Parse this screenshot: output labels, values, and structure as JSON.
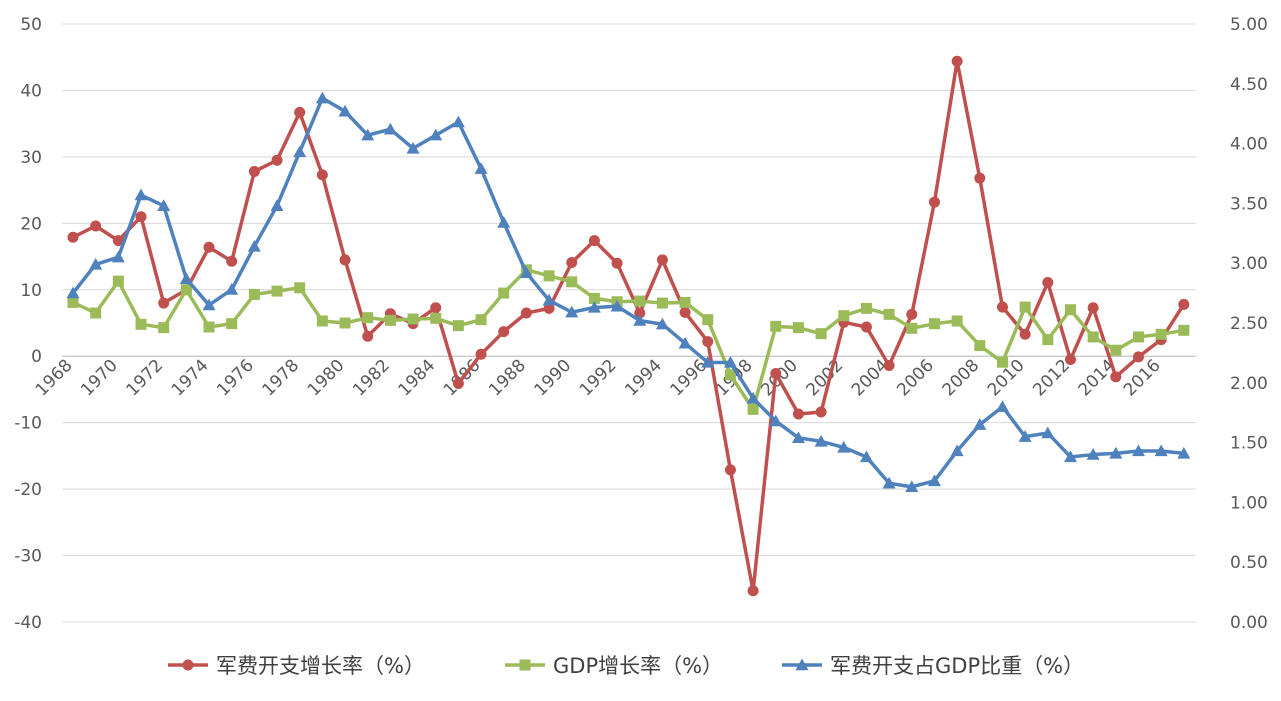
{
  "chart_data": {
    "type": "line",
    "title": "",
    "xlabel": "",
    "ylabel": "",
    "y2label": "",
    "grid": true,
    "legend_position": "bottom",
    "x": [
      1968,
      1969,
      1970,
      1971,
      1972,
      1973,
      1974,
      1975,
      1976,
      1977,
      1978,
      1979,
      1980,
      1981,
      1982,
      1983,
      1984,
      1985,
      1986,
      1987,
      1988,
      1989,
      1990,
      1991,
      1992,
      1993,
      1994,
      1995,
      1996,
      1997,
      1998,
      1999,
      2000,
      2001,
      2002,
      2003,
      2004,
      2005,
      2006,
      2007,
      2008,
      2009,
      2010,
      2011,
      2012,
      2013,
      2014,
      2015,
      2016,
      2017
    ],
    "x_tick_labels": [
      "1968",
      "1970",
      "1972",
      "1974",
      "1976",
      "1978",
      "1980",
      "1982",
      "1984",
      "1986",
      "1988",
      "1990",
      "1992",
      "1994",
      "1996",
      "1998",
      "2000",
      "2002",
      "2004",
      "2006",
      "2008",
      "2010",
      "2012",
      "2014",
      "2016"
    ],
    "y_left": {
      "min": -40,
      "max": 50,
      "step": 10,
      "tick_labels": [
        "-40",
        "-30",
        "-20",
        "-10",
        "0",
        "10",
        "20",
        "30",
        "40",
        "50"
      ]
    },
    "y_right": {
      "min": 0,
      "max": 5,
      "step": 0.5,
      "tick_labels": [
        "0.00",
        "0.50",
        "1.00",
        "1.50",
        "2.00",
        "2.50",
        "3.00",
        "3.50",
        "4.00",
        "4.50",
        "5.00"
      ]
    },
    "series": [
      {
        "name": "军费开支增长率（%）",
        "axis": "left",
        "marker": "circle",
        "color": "#C0504D",
        "values": [
          17.9,
          19.6,
          17.4,
          21.0,
          8.0,
          10.0,
          16.4,
          14.3,
          27.8,
          29.5,
          36.7,
          27.3,
          14.5,
          3.0,
          6.4,
          4.9,
          7.3,
          -4.1,
          0.3,
          3.7,
          6.5,
          7.2,
          14.1,
          17.4,
          14.0,
          6.5,
          14.5,
          6.6,
          2.2,
          -17.1,
          -35.3,
          -2.6,
          -8.7,
          -8.4,
          5.1,
          4.4,
          -1.4,
          6.3,
          23.2,
          44.4,
          26.8,
          7.4,
          3.3,
          11.1,
          -0.5,
          7.3,
          -3.1,
          -0.1,
          2.5,
          7.8
        ]
      },
      {
        "name": "GDP增长率（%）",
        "axis": "left",
        "marker": "square",
        "color": "#9BBB59",
        "values": [
          8.1,
          6.5,
          11.3,
          4.8,
          4.3,
          10.0,
          4.4,
          4.9,
          9.3,
          9.8,
          10.3,
          5.3,
          5.0,
          5.8,
          5.4,
          5.6,
          5.7,
          4.6,
          5.5,
          9.5,
          13.0,
          12.1,
          11.2,
          8.7,
          8.2,
          8.3,
          8.0,
          8.1,
          5.5,
          -2.8,
          -8.0,
          4.5,
          4.3,
          3.4,
          6.1,
          7.2,
          6.3,
          4.2,
          4.9,
          5.3,
          1.6,
          -0.9,
          7.4,
          2.5,
          7.0,
          2.9,
          0.9,
          2.9,
          3.3,
          3.9
        ]
      },
      {
        "name": "军费开支占GDP比重（%）",
        "axis": "right",
        "marker": "triangle",
        "color": "#4F81BD",
        "values": [
          2.75,
          2.99,
          3.05,
          3.57,
          3.48,
          2.87,
          2.65,
          2.78,
          3.14,
          3.48,
          3.93,
          4.38,
          4.27,
          4.07,
          4.12,
          3.96,
          4.07,
          4.18,
          3.79,
          3.34,
          2.92,
          2.69,
          2.59,
          2.63,
          2.64,
          2.52,
          2.49,
          2.33,
          2.17,
          2.17,
          1.87,
          1.68,
          1.54,
          1.51,
          1.46,
          1.38,
          1.16,
          1.13,
          1.18,
          1.43,
          1.65,
          1.8,
          1.55,
          1.58,
          1.38,
          1.4,
          1.41,
          1.43,
          1.43,
          1.41
        ]
      }
    ]
  }
}
